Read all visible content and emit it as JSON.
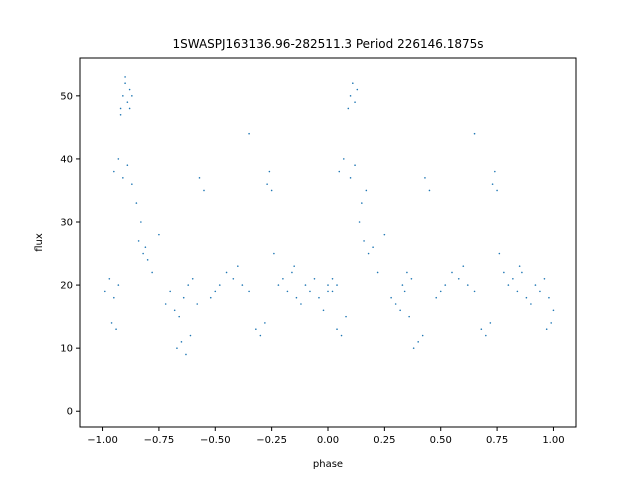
{
  "chart_data": {
    "type": "scatter",
    "title": "1SWASPJ163136.96-282511.3 Period 226146.1875s",
    "xlabel": "phase",
    "ylabel": "flux",
    "xlim": [
      -1.1,
      1.1
    ],
    "ylim": [
      -2.5,
      56
    ],
    "x_ticks": [
      -1.0,
      -0.75,
      -0.5,
      -0.25,
      0.0,
      0.25,
      0.5,
      0.75,
      1.0
    ],
    "x_tick_labels": [
      "−1.00",
      "−0.75",
      "−0.50",
      "−0.25",
      "0.00",
      "0.25",
      "0.50",
      "0.75",
      "1.00"
    ],
    "y_ticks": [
      0,
      10,
      20,
      30,
      40,
      50
    ],
    "y_tick_labels": [
      "0",
      "10",
      "20",
      "30",
      "40",
      "50"
    ],
    "grid": false,
    "series": [
      {
        "color": "#1f77b4",
        "marker_size": 0.8,
        "x": [
          -0.92,
          -0.91,
          -0.9,
          -0.89,
          -0.88,
          -0.87,
          -0.92,
          -0.9,
          -0.88,
          -0.95,
          -0.93,
          -0.91,
          -0.89,
          -0.87,
          -0.85,
          -0.83,
          -0.84,
          -0.82,
          -0.81,
          -0.8,
          -0.78,
          -0.99,
          -0.97,
          -0.95,
          -0.93,
          -0.96,
          -0.94,
          -0.72,
          -0.7,
          -0.68,
          -0.66,
          -0.64,
          -0.62,
          -0.6,
          -0.58,
          -0.67,
          -0.65,
          -0.63,
          -0.61,
          -0.52,
          -0.5,
          -0.48,
          -0.45,
          -0.42,
          -0.4,
          -0.38,
          -0.35,
          -0.32,
          -0.3,
          -0.28,
          -0.27,
          -0.26,
          -0.25,
          -0.24,
          -0.22,
          -0.2,
          -0.18,
          -0.16,
          -0.14,
          -0.12,
          -0.1,
          -0.08,
          -0.06,
          -0.04,
          -0.02,
          0.0,
          0.02,
          0.04,
          0.06,
          0.08,
          0.09,
          0.1,
          0.11,
          0.12,
          0.13,
          0.05,
          0.07,
          0.1,
          0.12,
          0.14,
          0.16,
          0.18,
          0.2,
          0.22,
          0.15,
          0.17,
          0.0,
          0.02,
          0.04,
          0.28,
          0.3,
          0.32,
          0.34,
          0.36,
          0.38,
          0.4,
          0.42,
          0.33,
          0.35,
          0.37,
          0.48,
          0.5,
          0.52,
          0.55,
          0.58,
          0.6,
          0.62,
          0.65,
          0.68,
          0.7,
          0.72,
          0.73,
          0.74,
          0.75,
          0.76,
          0.78,
          0.8,
          0.82,
          0.84,
          0.86,
          0.88,
          0.9,
          0.92,
          0.94,
          0.96,
          0.98,
          1.0,
          0.99,
          0.97,
          -0.55,
          -0.57,
          0.45,
          0.43,
          -0.35,
          0.65,
          -0.75,
          0.25,
          -0.15,
          0.85
        ],
        "y": [
          48,
          50,
          52,
          49,
          51,
          50,
          47,
          53,
          48,
          38,
          40,
          37,
          39,
          36,
          33,
          30,
          27,
          25,
          26,
          24,
          22,
          19,
          21,
          18,
          20,
          14,
          13,
          17,
          19,
          16,
          15,
          18,
          20,
          21,
          17,
          10,
          11,
          9,
          12,
          18,
          19,
          20,
          22,
          21,
          23,
          20,
          19,
          13,
          12,
          14,
          36,
          38,
          35,
          25,
          20,
          21,
          19,
          22,
          18,
          17,
          20,
          19,
          21,
          18,
          16,
          20,
          19,
          13,
          12,
          15,
          48,
          50,
          52,
          49,
          51,
          38,
          40,
          37,
          39,
          30,
          27,
          25,
          26,
          22,
          33,
          35,
          19,
          21,
          20,
          18,
          17,
          16,
          19,
          15,
          10,
          11,
          12,
          20,
          22,
          21,
          18,
          19,
          20,
          22,
          21,
          23,
          20,
          19,
          13,
          12,
          14,
          36,
          38,
          35,
          25,
          22,
          20,
          21,
          19,
          22,
          18,
          17,
          20,
          19,
          21,
          18,
          16,
          14,
          13,
          35,
          37,
          35,
          37,
          44,
          44,
          28,
          28,
          23,
          23
        ]
      }
    ]
  }
}
